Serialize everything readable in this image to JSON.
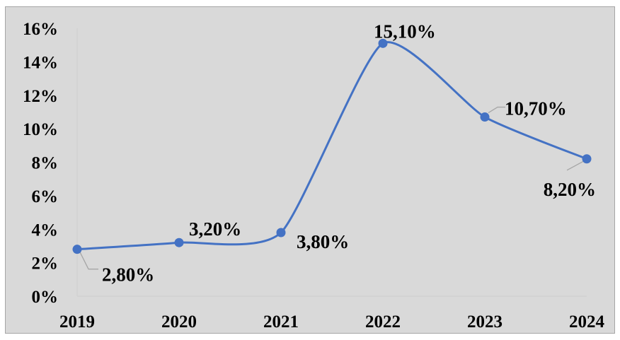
{
  "chart_data": {
    "type": "line",
    "smooth": true,
    "categories": [
      "2019",
      "2020",
      "2021",
      "2022",
      "2023",
      "2024"
    ],
    "series": [
      {
        "values": [
          2.8,
          3.2,
          3.8,
          15.1,
          10.7,
          8.2
        ],
        "data_labels": [
          "2,80%",
          "3,20%",
          "3,80%",
          "15,10%",
          "10,70%",
          "8,20%"
        ],
        "color": "#4472c4"
      }
    ],
    "y_ticks": [
      0,
      2,
      4,
      6,
      8,
      10,
      12,
      14,
      16
    ],
    "y_tick_labels": [
      "0%",
      "2%",
      "4%",
      "6%",
      "8%",
      "10%",
      "12%",
      "14%",
      "16%"
    ],
    "ylim": [
      0,
      16
    ],
    "grid": false,
    "legend": "none",
    "title": "",
    "xlabel": "",
    "ylabel": "",
    "background_color": "#d9d9d9",
    "axis_color": "#d0d0d0",
    "leader_line_color": "#a6a6a6"
  }
}
